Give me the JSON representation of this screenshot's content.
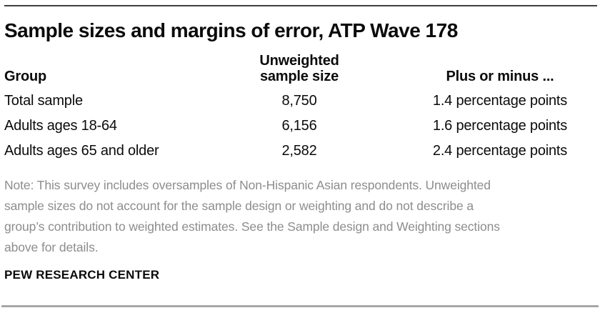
{
  "page": {
    "title": "Sample sizes and margins of error, ATP Wave 178"
  },
  "chart_data": {
    "type": "table",
    "title": "Sample sizes and margins of error, ATP Wave 178",
    "columns": [
      "Group",
      "Unweighted sample size",
      "Plus or minus ..."
    ],
    "rows": [
      [
        "Total sample",
        "8,750",
        "1.4 percentage points"
      ],
      [
        "Adults ages 18-64",
        "6,156",
        "1.6 percentage points"
      ],
      [
        "Adults ages 65 and older",
        "2,582",
        "2.4 percentage points"
      ]
    ]
  },
  "table": {
    "headers": {
      "group": "Group",
      "sample_size_line1": "Unweighted",
      "sample_size_line2": "sample size",
      "margin": "Plus or minus ..."
    },
    "rows": [
      {
        "group": "Total sample",
        "sample_size": "8,750",
        "margin": "1.4 percentage points"
      },
      {
        "group": "Adults ages 18-64",
        "sample_size": "6,156",
        "margin": "1.6 percentage points"
      },
      {
        "group": "Adults ages 65 and older",
        "sample_size": "2,582",
        "margin": "2.4 percentage points"
      }
    ]
  },
  "note": {
    "lines": [
      "Note: This survey includes oversamples of Non-Hispanic Asian respondents. Unweighted",
      "sample sizes do not account for the sample design or weighting and do not describe a",
      "group’s contribution to weighted estimates. See the Sample design and Weighting sections",
      "above for details."
    ]
  },
  "footer": {
    "brand": "PEW RESEARCH CENTER"
  },
  "colors": {
    "top_rule": "#3f3f3f",
    "bottom_rule": "#a8a8a8",
    "text": "#0b0b0b",
    "note_text": "#8d8d8d",
    "background": "#ffffff"
  }
}
